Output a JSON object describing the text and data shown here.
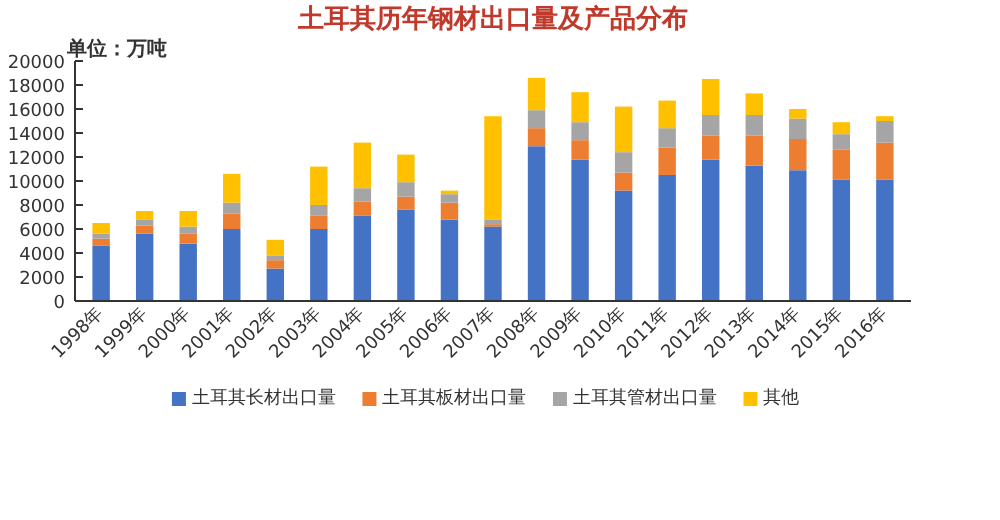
{
  "chart_data": {
    "type": "bar",
    "stacked": true,
    "title": "土耳其历年钢材出口量及产品分布",
    "annotations": [
      "单位：万吨"
    ],
    "categories": [
      "1998年",
      "1999年",
      "2000年",
      "2001年",
      "2002年",
      "2003年",
      "2004年",
      "2005年",
      "2006年",
      "2007年",
      "2008年",
      "2009年",
      "2010年",
      "2011年",
      "2012年",
      "2013年",
      "2014年",
      "2015年",
      "2016年"
    ],
    "ylim": [
      0,
      20000
    ],
    "yticks": [
      0,
      2000,
      4000,
      6000,
      8000,
      10000,
      12000,
      14000,
      16000,
      18000,
      20000
    ],
    "grid": false,
    "legend": "bottom",
    "series": [
      {
        "name": "土耳其长材出口量",
        "color": "#4472c4",
        "values": [
          4600,
          5600,
          4800,
          6000,
          2700,
          6000,
          7100,
          7600,
          6800,
          6200,
          12900,
          11800,
          9200,
          10500,
          11800,
          11300,
          10900,
          10100,
          10100
        ]
      },
      {
        "name": "土耳其板材出口量",
        "color": "#ed7d31",
        "values": [
          600,
          700,
          800,
          1300,
          700,
          1100,
          1200,
          1100,
          1400,
          200,
          1500,
          1600,
          1500,
          2300,
          2000,
          2500,
          2600,
          2500,
          3100
        ]
      },
      {
        "name": "土耳其管材出口量",
        "color": "#a5a5a5",
        "values": [
          400,
          500,
          600,
          900,
          400,
          900,
          1100,
          1200,
          700,
          400,
          1500,
          1500,
          1700,
          1600,
          1700,
          1700,
          1700,
          1300,
          1800
        ]
      },
      {
        "name": "其他",
        "color": "#ffc000",
        "values": [
          900,
          700,
          1300,
          2400,
          1300,
          3200,
          3800,
          2300,
          300,
          8600,
          2700,
          2500,
          3800,
          2300,
          3000,
          1800,
          800,
          1000,
          400
        ]
      }
    ]
  }
}
